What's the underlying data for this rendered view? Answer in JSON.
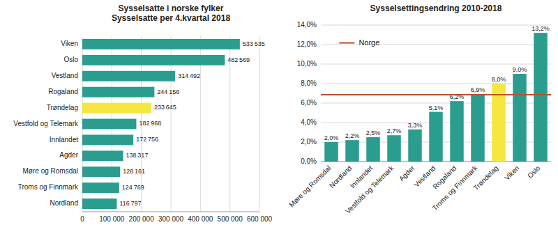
{
  "chart_data": [
    {
      "type": "bar",
      "orientation": "horizontal",
      "title": "Sysselsatte  i norske fylker\nSysselsatte per 4.kvartal 2018",
      "categories": [
        "Nordland",
        "Troms og Finnmark",
        "Møre og Romsdal",
        "Agder",
        "Innlandet",
        "Vestfold og Telemark",
        "Trøndelag",
        "Rogaland",
        "Vestland",
        "Oslo",
        "Viken"
      ],
      "values": [
        116797,
        124769,
        128161,
        138317,
        172756,
        182968,
        233645,
        244156,
        314492,
        482569,
        533535
      ],
      "value_labels": [
        "116 797",
        "124 769",
        "128 161",
        "138 317",
        "172 756",
        "182 968",
        "233 645",
        "244 156",
        "314 492",
        "482 569",
        "533 535"
      ],
      "colors": [
        "#2a9d8f",
        "#2a9d8f",
        "#2a9d8f",
        "#2a9d8f",
        "#2a9d8f",
        "#2a9d8f",
        "#f5e642",
        "#2a9d8f",
        "#2a9d8f",
        "#2a9d8f",
        "#2a9d8f"
      ],
      "xlim": [
        0,
        600000
      ],
      "xticks": [
        0,
        {
          "value": 100000,
          "label": "100 000"
        },
        {
          "value": 200000,
          "label": "200 000"
        },
        {
          "value": 300000,
          "label": "300 000"
        },
        {
          "value": 400000,
          "label": "400 000"
        },
        {
          "value": 500000,
          "label": "500 000"
        },
        {
          "value": 600000,
          "label": "600 000"
        }
      ],
      "grid": true,
      "data_labels": true
    },
    {
      "type": "bar",
      "title": "Sysselsettingsendring 2010-2018",
      "categories": [
        "Møre og Romsdal",
        "Nordland",
        "Innlandet",
        "Vestfold og Telemark",
        "Agder",
        "Vestland",
        "Rogaland",
        "Troms og Finnmark",
        "Trøndelag",
        "Viken",
        "Oslo"
      ],
      "values": [
        2.0,
        2.2,
        2.5,
        2.7,
        3.3,
        5.1,
        6.2,
        6.9,
        8.0,
        9.0,
        13.2
      ],
      "value_labels": [
        "2,0%",
        "2,2%",
        "2,5%",
        "2,7%",
        "3,3%",
        "5,1%",
        "6,2%",
        "6,9%",
        "8,0%",
        "9,0%",
        "13,2%"
      ],
      "colors": [
        "#2a9d8f",
        "#2a9d8f",
        "#2a9d8f",
        "#2a9d8f",
        "#2a9d8f",
        "#2a9d8f",
        "#2a9d8f",
        "#2a9d8f",
        "#f5e642",
        "#2a9d8f",
        "#2a9d8f"
      ],
      "ylim": [
        0,
        14.0
      ],
      "yticks": [
        {
          "value": 0,
          "label": "0,0%"
        },
        {
          "value": 2.0,
          "label": "2,0%"
        },
        {
          "value": 4.0,
          "label": "4,0%"
        },
        {
          "value": 6.0,
          "label": "6,0%"
        },
        {
          "value": 8.0,
          "label": "8,0%"
        },
        {
          "value": 10.0,
          "label": "10,0%"
        },
        {
          "value": 12.0,
          "label": "12,0%"
        },
        {
          "value": 14.0,
          "label": "14,0%"
        }
      ],
      "reference_line": {
        "name": "Norge",
        "value": 6.85,
        "color": "#c0502a"
      },
      "legend": "upper left",
      "grid": true,
      "data_labels": true
    }
  ]
}
